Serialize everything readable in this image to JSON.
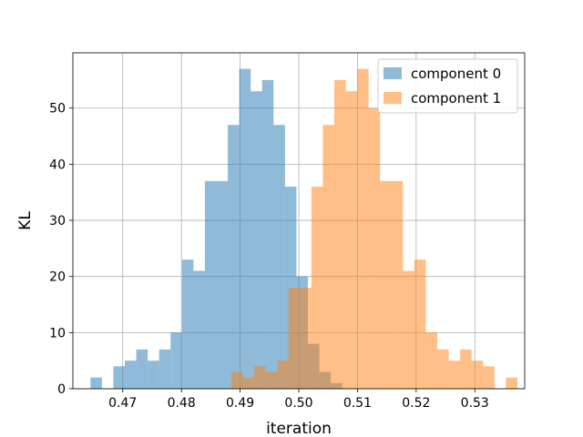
{
  "chart_data": {
    "type": "histogram",
    "xlabel": "iteration",
    "ylabel": "KL",
    "xlim": [
      0.4615,
      0.5385
    ],
    "ylim": [
      0,
      59.85
    ],
    "x_ticks": [
      0.47,
      0.48,
      0.49,
      0.5,
      0.51,
      0.52,
      0.53
    ],
    "x_tick_labels": [
      "0.47",
      "0.48",
      "0.49",
      "0.50",
      "0.51",
      "0.52",
      "0.53"
    ],
    "y_ticks": [
      0,
      10,
      20,
      30,
      40,
      50
    ],
    "y_tick_labels": [
      "0",
      "10",
      "20",
      "30",
      "40",
      "50"
    ],
    "grid": true,
    "legend_position": "top-right",
    "series": [
      {
        "name": "component 0",
        "color": "#1f77b4",
        "opacity": 0.5,
        "bin_start": 0.4645,
        "bin_width": 0.00195,
        "counts": [
          2,
          0,
          4,
          5,
          7,
          5,
          7,
          10,
          23,
          21,
          37,
          37,
          47,
          57,
          53,
          55,
          47,
          36,
          20,
          8,
          3,
          1
        ]
      },
      {
        "name": "component 1",
        "color": "#ff7f0e",
        "opacity": 0.5,
        "bin_start": 0.4885,
        "bin_width": 0.00195,
        "counts": [
          3,
          2,
          4,
          3,
          5,
          18,
          18,
          36,
          47,
          55,
          53,
          57,
          50,
          37,
          37,
          21,
          23,
          10,
          7,
          5,
          7,
          5,
          4,
          0,
          2
        ]
      }
    ]
  }
}
